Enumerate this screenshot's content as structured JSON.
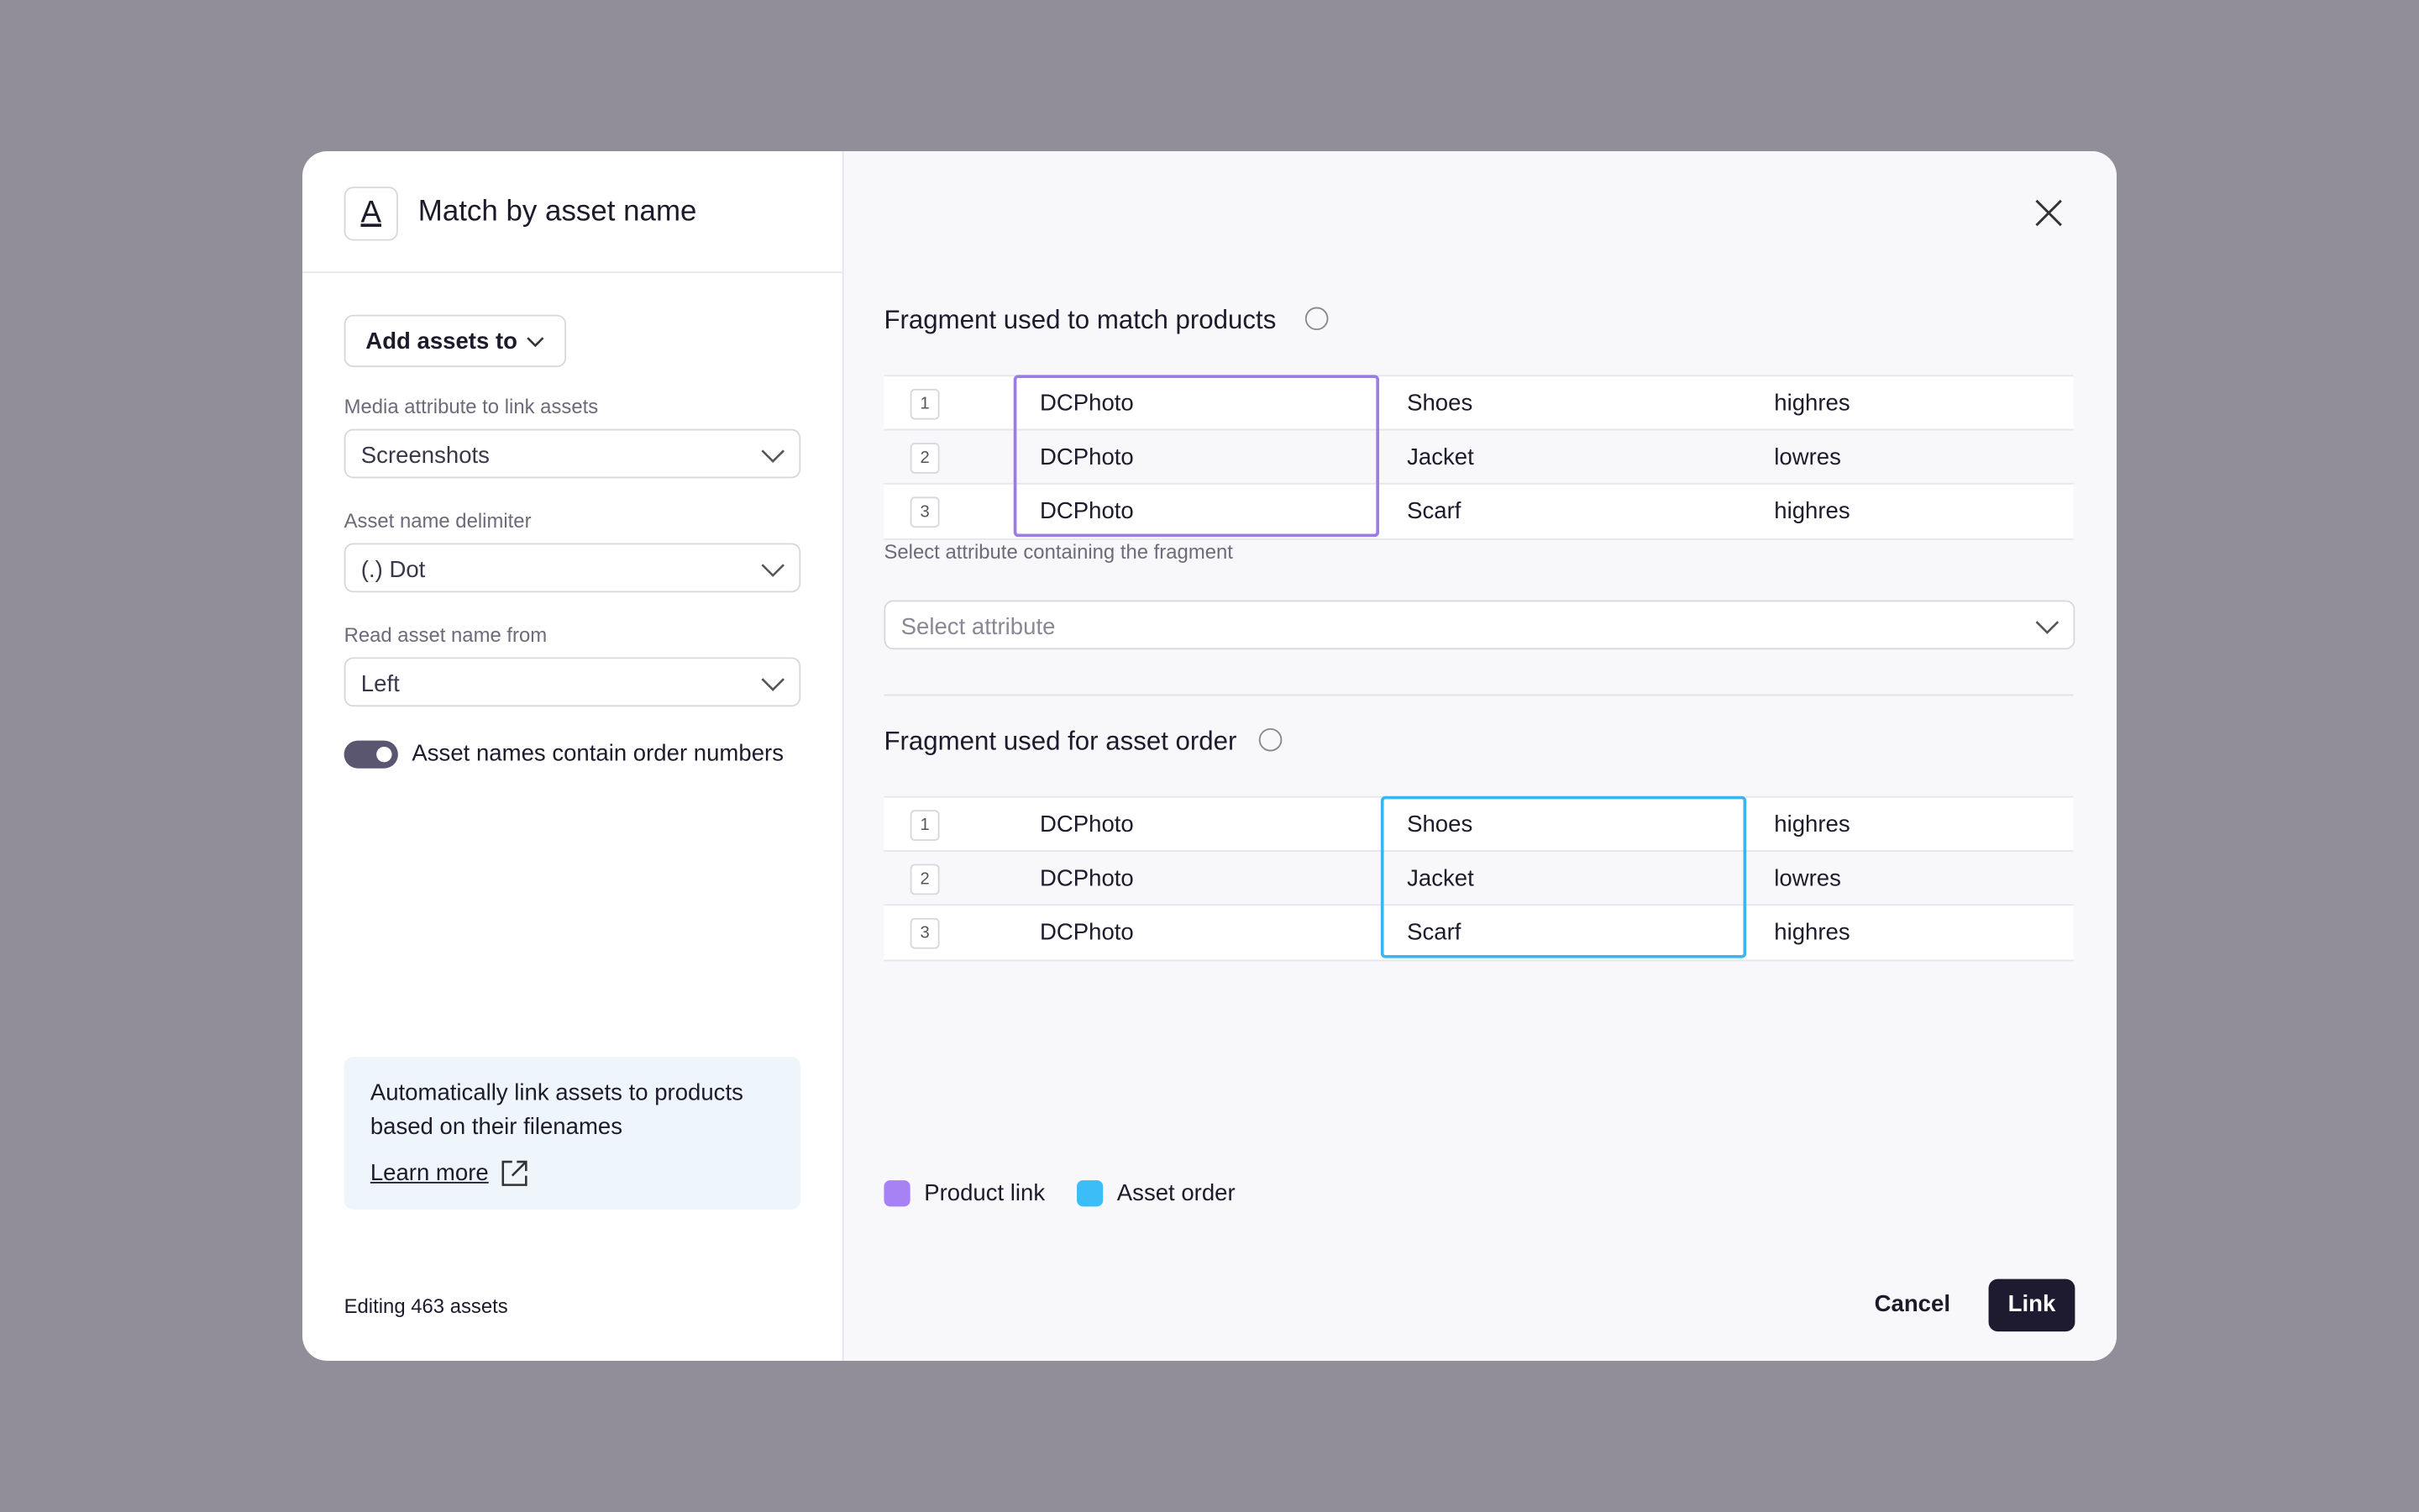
{
  "header": {
    "icon": "A",
    "title": "Match by asset name"
  },
  "sidebar": {
    "button": "Add assets to",
    "fields": [
      {
        "label": "Media attribute to link assets",
        "value": "Screenshots"
      },
      {
        "label": "Asset name delimiter",
        "value": "(.) Dot"
      },
      {
        "label": "Read asset name from",
        "value": "Left"
      }
    ],
    "toggle": {
      "label": "Asset names contain order numbers",
      "on": true
    },
    "info": {
      "line1": "Automatically link assets to products",
      "line2": "based on their filenames",
      "link": "Learn more"
    },
    "footer": "Editing 463 assets"
  },
  "sections": [
    {
      "title": "Fragment used to match products",
      "highlight_column": 1,
      "highlight_color": "#9b7bea",
      "rows": [
        [
          "1",
          "DCPhoto",
          "Shoes",
          "highres"
        ],
        [
          "2",
          "DCPhoto",
          "Jacket",
          "lowres"
        ],
        [
          "3",
          "DCPhoto",
          "Scarf",
          "highres"
        ]
      ],
      "select_label": "Select attribute containing the fragment",
      "select_placeholder": "Select attribute"
    },
    {
      "title": "Fragment used for asset order",
      "highlight_column": 2,
      "highlight_color": "#3cb5ef",
      "rows": [
        [
          "1",
          "DCPhoto",
          "Shoes",
          "highres"
        ],
        [
          "2",
          "DCPhoto",
          "Jacket",
          "lowres"
        ],
        [
          "3",
          "DCPhoto",
          "Scarf",
          "highres"
        ]
      ]
    }
  ],
  "legend": [
    {
      "name": "Product link",
      "color": "#a682f5"
    },
    {
      "name": "Asset order",
      "color": "#3dbdf7"
    }
  ],
  "actions": {
    "cancel": "Cancel",
    "confirm": "Link"
  }
}
